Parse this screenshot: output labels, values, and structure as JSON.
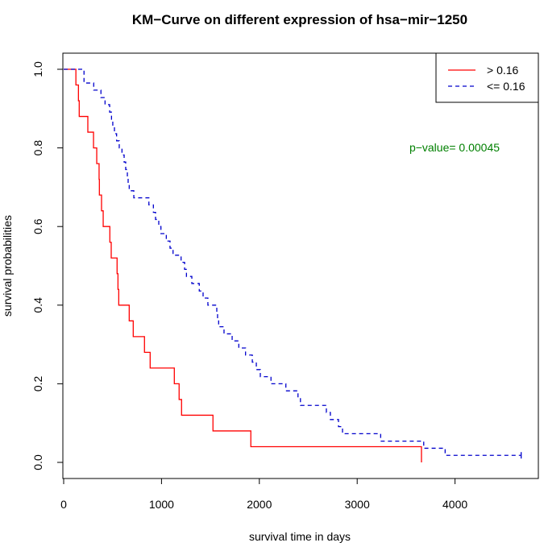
{
  "chart_data": {
    "type": "line",
    "title": "KM−Curve on different expression of hsa−mir−1250",
    "xlabel": "survival time in days",
    "ylabel": "survival probabilities",
    "xlim": [
      0,
      4700
    ],
    "ylim": [
      0,
      1.0
    ],
    "xticks": [
      0,
      1000,
      2000,
      3000,
      4000
    ],
    "xtick_labels": [
      "0",
      "1000",
      "2000",
      "3000",
      "4000"
    ],
    "yticks": [
      0,
      0.2,
      0.4,
      0.6,
      0.8,
      1.0
    ],
    "ytick_labels": [
      "0.0",
      "0.2",
      "0.4",
      "0.6",
      "0.8",
      "1.0"
    ],
    "grid": false,
    "legend_position": "top-right",
    "annotation": "p−value= 0.00045",
    "annotation_color": "#008000",
    "series": [
      {
        "name": "> 0.16",
        "color": "#ff0000",
        "style": "solid",
        "end_time": 3657,
        "steps": [
          [
            0,
            1.0
          ],
          [
            125,
            0.96
          ],
          [
            151,
            0.92
          ],
          [
            159,
            0.88
          ],
          [
            247,
            0.84
          ],
          [
            305,
            0.8
          ],
          [
            338,
            0.76
          ],
          [
            362,
            0.72
          ],
          [
            365,
            0.68
          ],
          [
            387,
            0.64
          ],
          [
            404,
            0.6
          ],
          [
            472,
            0.56
          ],
          [
            486,
            0.52
          ],
          [
            546,
            0.48
          ],
          [
            555,
            0.44
          ],
          [
            563,
            0.4
          ],
          [
            670,
            0.36
          ],
          [
            711,
            0.32
          ],
          [
            826,
            0.28
          ],
          [
            884,
            0.24
          ],
          [
            1131,
            0.2
          ],
          [
            1180,
            0.16
          ],
          [
            1205,
            0.12
          ],
          [
            1526,
            0.08
          ],
          [
            1913,
            0.04
          ],
          [
            3657,
            0.0
          ]
        ]
      },
      {
        "name": "<= 0.16",
        "color": "#0000cc",
        "style": "dashed",
        "end_time": 4676,
        "steps": [
          [
            0,
            1.0
          ],
          [
            208,
            0.965
          ],
          [
            307,
            0.947
          ],
          [
            381,
            0.928
          ],
          [
            423,
            0.91
          ],
          [
            470,
            0.891
          ],
          [
            489,
            0.873
          ],
          [
            502,
            0.855
          ],
          [
            519,
            0.836
          ],
          [
            541,
            0.818
          ],
          [
            568,
            0.8
          ],
          [
            596,
            0.782
          ],
          [
            618,
            0.764
          ],
          [
            634,
            0.745
          ],
          [
            651,
            0.727
          ],
          [
            659,
            0.709
          ],
          [
            670,
            0.691
          ],
          [
            717,
            0.673
          ],
          [
            871,
            0.655
          ],
          [
            917,
            0.636
          ],
          [
            939,
            0.618
          ],
          [
            972,
            0.6
          ],
          [
            994,
            0.582
          ],
          [
            1049,
            0.563
          ],
          [
            1087,
            0.545
          ],
          [
            1118,
            0.527
          ],
          [
            1200,
            0.509
          ],
          [
            1236,
            0.491
          ],
          [
            1255,
            0.473
          ],
          [
            1310,
            0.455
          ],
          [
            1386,
            0.436
          ],
          [
            1425,
            0.418
          ],
          [
            1474,
            0.4
          ],
          [
            1565,
            0.382
          ],
          [
            1573,
            0.364
          ],
          [
            1584,
            0.345
          ],
          [
            1639,
            0.327
          ],
          [
            1722,
            0.309
          ],
          [
            1790,
            0.291
          ],
          [
            1859,
            0.273
          ],
          [
            1928,
            0.255
          ],
          [
            1969,
            0.236
          ],
          [
            2010,
            0.218
          ],
          [
            2119,
            0.2
          ],
          [
            2271,
            0.182
          ],
          [
            2395,
            0.164
          ],
          [
            2420,
            0.145
          ],
          [
            2685,
            0.127
          ],
          [
            2726,
            0.109
          ],
          [
            2809,
            0.091
          ],
          [
            2850,
            0.073
          ],
          [
            3240,
            0.054
          ],
          [
            3680,
            0.036
          ],
          [
            3899,
            0.018
          ]
        ]
      }
    ]
  }
}
